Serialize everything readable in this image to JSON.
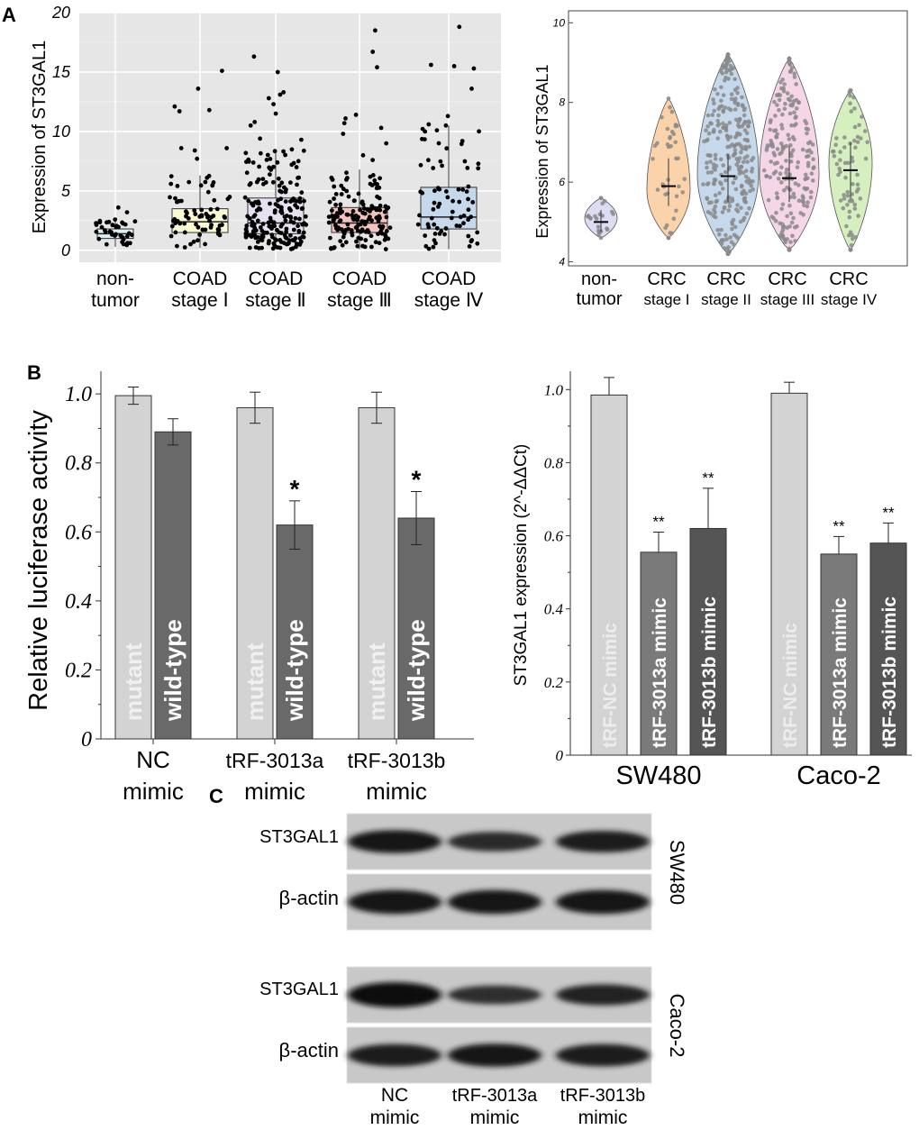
{
  "panel_labels": {
    "a": "A",
    "b": "B",
    "c": "C"
  },
  "chart_data": [
    {
      "type": "box",
      "ylabel": "Expression of ST3GAL1",
      "ylim": [
        -1,
        20
      ],
      "yticks": [
        0,
        5,
        10,
        15,
        20
      ],
      "background": "#e6e6e6",
      "grid": true,
      "categories": [
        {
          "line1": "non-",
          "line2": "tumor",
          "fill": "#dceef5"
        },
        {
          "line1": "COAD",
          "line2": "stage Ⅰ",
          "fill": "#fafad2"
        },
        {
          "line1": "COAD",
          "line2": "stage Ⅱ",
          "fill": "#e6e0f0"
        },
        {
          "line1": "COAD",
          "line2": "stage Ⅲ",
          "fill": "#f6c2bd"
        },
        {
          "line1": "COAD",
          "line2": "stage Ⅳ",
          "fill": "#c6d9ec"
        }
      ],
      "boxes": [
        {
          "whisker_low": 0.3,
          "q1": 1.0,
          "median": 1.4,
          "q3": 1.8,
          "whisker_high": 2.6
        },
        {
          "whisker_low": 0.2,
          "q1": 1.5,
          "median": 2.4,
          "q3": 3.5,
          "whisker_high": 6.3
        },
        {
          "whisker_low": 0.1,
          "q1": 1.4,
          "median": 2.3,
          "q3": 4.4,
          "whisker_high": 8.5
        },
        {
          "whisker_low": 0.1,
          "q1": 1.5,
          "median": 2.3,
          "q3": 3.6,
          "whisker_high": 6.8
        },
        {
          "whisker_low": 0.1,
          "q1": 1.8,
          "median": 2.8,
          "q3": 5.3,
          "whisker_high": 10.5
        }
      ],
      "points_per_group": [
        40,
        70,
        200,
        150,
        70
      ],
      "outliers": [
        [
          3.6,
          3.2
        ],
        [
          15.1,
          13.6,
          12.1,
          11.8,
          11.7,
          8.6,
          8.6,
          8.4,
          7.7
        ],
        [
          16.3,
          15.0,
          13.3,
          13.1,
          12.8,
          12.3,
          11.5,
          10.8,
          10.5,
          9.4,
          9.3
        ],
        [
          18.5,
          16.7,
          15.4,
          11.4,
          11.1,
          10.7,
          10.3,
          9.8,
          9.0,
          8.0,
          7.6
        ],
        [
          18.8,
          15.6,
          15.5,
          15.3,
          13.6,
          11.3,
          10.6,
          10.5,
          10.1,
          10.0,
          9.2
        ]
      ]
    },
    {
      "type": "violin",
      "ylabel": "Expression of ST3GAL1",
      "ylim": [
        3.9,
        10.3
      ],
      "yticks": [
        4,
        6,
        8,
        10
      ],
      "categories": [
        {
          "line1": "non-",
          "line2": "tumor",
          "fill": "#dcdcf2"
        },
        {
          "line1": "CRC",
          "line2": "stage I",
          "fill": "#fbd3aa"
        },
        {
          "line1": "CRC",
          "line2": "stage II",
          "fill": "#c6d9ec"
        },
        {
          "line1": "CRC",
          "line2": "stage III",
          "fill": "#f5d6e6"
        },
        {
          "line1": "CRC",
          "line2": "stage IV",
          "fill": "#d6efbf"
        }
      ],
      "violins": [
        {
          "min": 4.6,
          "max": 5.6,
          "peak": 5.1,
          "median": 5.0,
          "q1": 4.75,
          "q3": 5.3,
          "points": 22
        },
        {
          "min": 4.6,
          "max": 8.1,
          "peak": 5.8,
          "median": 5.9,
          "q1": 5.4,
          "q3": 6.6,
          "points": 40
        },
        {
          "min": 4.2,
          "max": 9.2,
          "peak": 6.2,
          "median": 6.15,
          "q1": 5.5,
          "q3": 6.7,
          "points": 300
        },
        {
          "min": 4.3,
          "max": 9.1,
          "peak": 6.2,
          "median": 6.1,
          "q1": 5.5,
          "q3": 6.9,
          "points": 220
        },
        {
          "min": 4.3,
          "max": 8.3,
          "peak": 6.5,
          "median": 6.3,
          "q1": 5.6,
          "q3": 7.0,
          "points": 80
        }
      ]
    },
    {
      "type": "bar",
      "ylabel": "Relative luciferase activity",
      "ylim": [
        0,
        1.05
      ],
      "yticks": [
        "0",
        "0.2",
        "0.4",
        "0.6",
        "0.8",
        "1.0"
      ],
      "groups": [
        {
          "line1": "NC",
          "line2": "mimic"
        },
        {
          "line1": "tRF-3013a",
          "line2": "mimic"
        },
        {
          "line1": "tRF-3013b",
          "line2": "mimic"
        }
      ],
      "series": [
        {
          "name": "mutant",
          "fill": "#d3d3d3",
          "values": [
            0.995,
            0.96,
            0.96
          ],
          "errors": [
            0.025,
            0.045,
            0.045
          ],
          "marks": [
            "",
            "",
            ""
          ]
        },
        {
          "name": "wild-type",
          "fill": "#696969",
          "values": [
            0.89,
            0.62,
            0.64
          ],
          "errors": [
            0.038,
            0.07,
            0.077
          ],
          "marks": [
            "",
            "*",
            "*"
          ]
        }
      ]
    },
    {
      "type": "bar",
      "ylabel": "ST3GAL1 expression (2^-ΔΔCt)",
      "ylim": [
        0,
        1.05
      ],
      "yticks": [
        "0",
        "0.2",
        "0.4",
        "0.6",
        "0.8",
        "1.0"
      ],
      "groups": [
        {
          "name": "SW480"
        },
        {
          "name": "Caco-2"
        }
      ],
      "series": [
        {
          "name": "tRF-NC mimic",
          "fill": "#d3d3d3",
          "values": [
            0.985,
            0.99
          ],
          "errors": [
            0.048,
            0.03
          ],
          "marks": [
            "",
            ""
          ]
        },
        {
          "name": "tRF-3013a mimic",
          "fill": "#7a7a7a",
          "values": [
            0.555,
            0.55
          ],
          "errors": [
            0.055,
            0.048
          ],
          "marks": [
            "**",
            "**"
          ]
        },
        {
          "name": "tRF-3013b mimic",
          "fill": "#555555",
          "values": [
            0.62,
            0.58
          ],
          "errors": [
            0.11,
            0.055
          ],
          "marks": [
            "**",
            "**"
          ]
        }
      ]
    }
  ],
  "blot": {
    "row_labels": [
      "ST3GAL1",
      "β-actin",
      "ST3GAL1",
      "β-actin"
    ],
    "side_labels": [
      "SW480",
      "Caco-2"
    ],
    "lanes": [
      {
        "line1": "NC",
        "line2": "mimic"
      },
      {
        "line1": "tRF-3013a",
        "line2": "mimic"
      },
      {
        "line1": "tRF-3013b",
        "line2": "mimic"
      }
    ],
    "band_intensity": [
      [
        0.85,
        0.6,
        0.75
      ],
      [
        0.9,
        0.9,
        0.9
      ],
      [
        1.0,
        0.55,
        0.7
      ],
      [
        0.8,
        0.85,
        0.8
      ]
    ]
  }
}
